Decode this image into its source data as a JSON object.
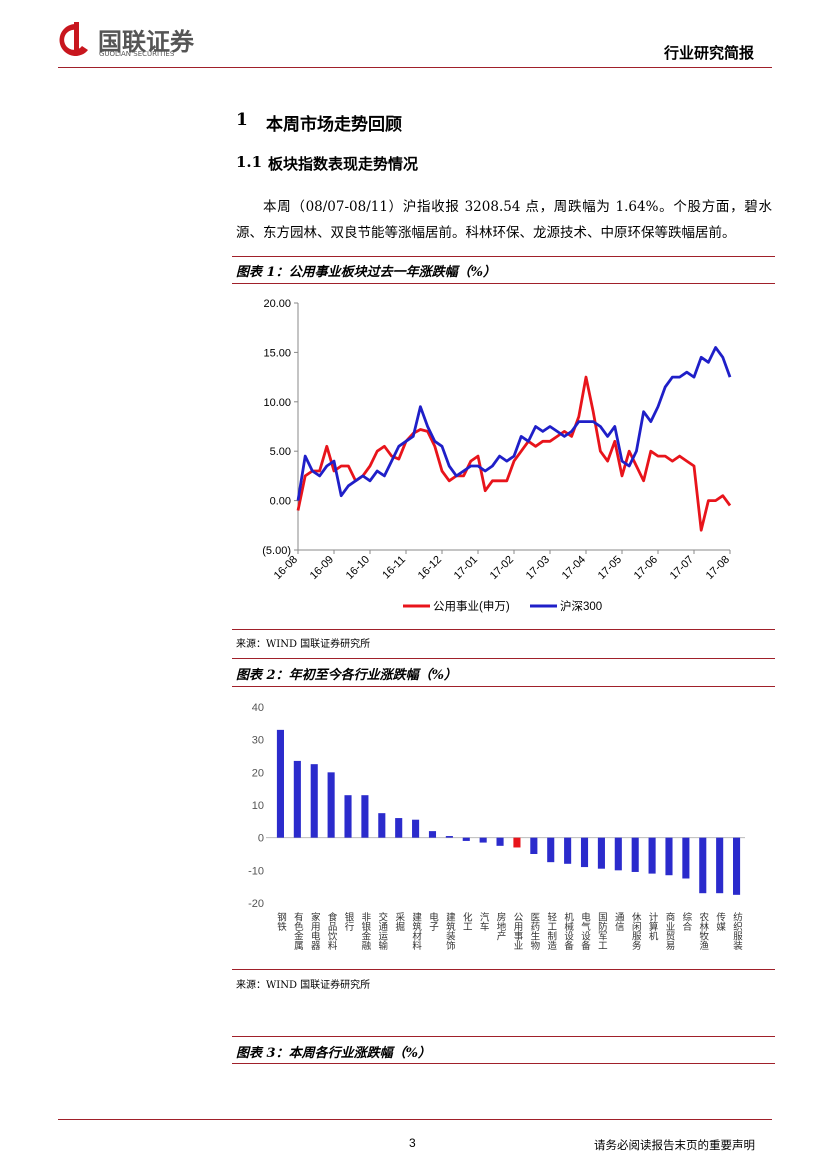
{
  "header": {
    "logo": "国联证券",
    "logo_sub": "GUOLIAN SECURITIES",
    "report_type": "行业研究简报"
  },
  "section": {
    "number": "1",
    "title": "本周市场走势回顾"
  },
  "subsection": {
    "number": "1.1",
    "title": "板块指数表现走势情况"
  },
  "paragraph": "本周（08/07-08/11）沪指收报 3208.54 点，周跌幅为 1.64%。个股方面，碧水源、东方园林、双良节能等涨幅居前。科林环保、龙源技术、中原环保等跌幅居前。",
  "figures": [
    {
      "title": "图表 1：公用事业板块过去一年涨跌幅（%）",
      "source": "来源：WIND  国联证券研究所"
    },
    {
      "title": "图表 2：年初至今各行业涨跌幅（%）",
      "source": "来源：WIND  国联证券研究所"
    },
    {
      "title": "图表 3：本周各行业涨跌幅（%）"
    }
  ],
  "chart_data": [
    {
      "type": "line",
      "categories": [
        "16-08",
        null,
        null,
        null,
        null,
        "16-09",
        null,
        null,
        null,
        null,
        "16-10",
        null,
        null,
        null,
        null,
        "16-11",
        null,
        null,
        null,
        null,
        "16-12",
        null,
        null,
        null,
        null,
        "17-01",
        null,
        null,
        null,
        null,
        "17-02",
        null,
        null,
        null,
        null,
        "17-03",
        null,
        null,
        null,
        null,
        "17-04",
        null,
        null,
        null,
        null,
        "17-05",
        null,
        null,
        null,
        null,
        "17-06",
        null,
        null,
        null,
        null,
        "17-07",
        null,
        null,
        null,
        null,
        "17-08"
      ],
      "series": [
        {
          "name": "公用事业(申万)",
          "color": "#e8141b",
          "values": [
            -1.0,
            2.5,
            3.0,
            3.0,
            5.5,
            3.0,
            3.5,
            3.5,
            2.0,
            2.5,
            3.5,
            5.0,
            5.5,
            4.5,
            4.2,
            6.0,
            6.8,
            7.2,
            7.0,
            5.5,
            3.0,
            2.0,
            2.5,
            2.5,
            4.0,
            4.5,
            1.0,
            2.0,
            2.0,
            2.0,
            4.0,
            5.0,
            6.0,
            5.5,
            6.0,
            6.0,
            6.5,
            7.0,
            6.5,
            8.5,
            12.5,
            9.0,
            5.0,
            4.0,
            6.0,
            2.5,
            5.0,
            3.5,
            2.0,
            5.0,
            4.5,
            4.5,
            4.0,
            4.5,
            4.0,
            3.5,
            -3.0,
            0.0,
            0.0,
            0.5,
            -0.5
          ]
        },
        {
          "name": "沪深300",
          "color": "#1f1fc8",
          "values": [
            0.0,
            4.5,
            3.0,
            2.5,
            3.5,
            4.0,
            0.5,
            1.5,
            2.0,
            2.5,
            2.0,
            3.0,
            2.5,
            4.0,
            5.5,
            6.0,
            6.5,
            9.5,
            7.5,
            6.0,
            5.5,
            3.5,
            2.5,
            3.0,
            3.5,
            3.5,
            3.0,
            3.5,
            4.5,
            4.0,
            4.5,
            6.5,
            6.0,
            7.5,
            7.0,
            7.5,
            7.0,
            6.5,
            7.0,
            8.0,
            8.0,
            8.0,
            7.5,
            6.5,
            7.5,
            4.0,
            3.5,
            5.0,
            9.0,
            8.0,
            9.5,
            11.5,
            12.5,
            12.5,
            13.0,
            12.5,
            14.5,
            14.0,
            15.5,
            14.5,
            12.5
          ]
        }
      ],
      "ylim": [
        -5,
        20
      ],
      "yticks": [
        {
          "value": -5,
          "label": "(5.00)"
        },
        {
          "value": 0,
          "label": "0.00"
        },
        {
          "value": 5,
          "label": "5.00"
        },
        {
          "value": 10,
          "label": "10.00"
        },
        {
          "value": 15,
          "label": "15.00"
        },
        {
          "value": 20,
          "label": "20.00"
        }
      ],
      "grid": false,
      "legend": "bottom"
    },
    {
      "type": "bar",
      "categories": [
        "钢铁",
        "有色金属",
        "家用电器",
        "食品饮料",
        "银行",
        "非银金融",
        "交通运输",
        "采掘",
        "建筑材料",
        "电子",
        "建筑装饰",
        "化工",
        "汽车",
        "房地产",
        "公用事业",
        "医药生物",
        "轻工制造",
        "机械设备",
        "电气设备",
        "国防军工",
        "通信",
        "休闲服务",
        "计算机",
        "商业贸易",
        "综合",
        "农林牧渔",
        "传媒",
        "纺织服装"
      ],
      "values": [
        33,
        23.5,
        22.5,
        20,
        13,
        13,
        7.5,
        6,
        5.5,
        2,
        0.5,
        -1,
        -1.5,
        -2.5,
        -3,
        -5,
        -7.5,
        -8,
        -9,
        -9.5,
        -10,
        -10.5,
        -11,
        -11.5,
        -12.5,
        -17,
        -17,
        -17.5
      ],
      "colors": [
        "#2b2bcc",
        "#2b2bcc",
        "#2b2bcc",
        "#2b2bcc",
        "#2b2bcc",
        "#2b2bcc",
        "#2b2bcc",
        "#2b2bcc",
        "#2b2bcc",
        "#2b2bcc",
        "#2b2bcc",
        "#2b2bcc",
        "#2b2bcc",
        "#2b2bcc",
        "#e8141b",
        "#2b2bcc",
        "#2b2bcc",
        "#2b2bcc",
        "#2b2bcc",
        "#2b2bcc",
        "#2b2bcc",
        "#2b2bcc",
        "#2b2bcc",
        "#2b2bcc",
        "#2b2bcc",
        "#2b2bcc",
        "#2b2bcc",
        "#2b2bcc"
      ],
      "ylim": [
        -20,
        40
      ],
      "yticks": [
        -20,
        -10,
        0,
        10,
        20,
        30,
        40
      ],
      "grid": false
    }
  ],
  "footer": {
    "page": "3",
    "disclaimer": "请务必阅读报告末页的重要声明"
  }
}
